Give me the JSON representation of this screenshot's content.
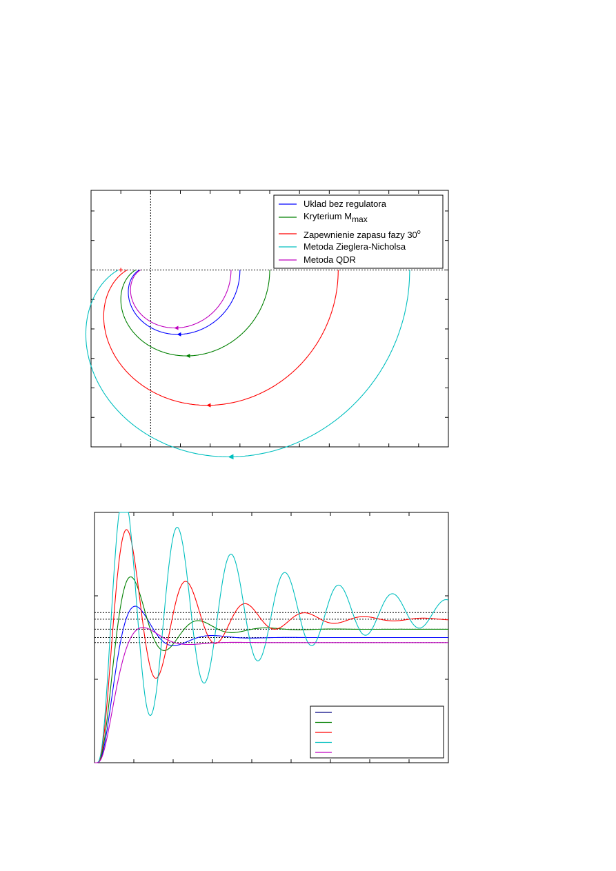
{
  "colors": {
    "blue": "#0000ff",
    "green": "#008000",
    "red": "#ff0000",
    "cyan": "#00bfbf",
    "magenta": "#bf00bf",
    "axis": "#000000"
  },
  "chart_data": [
    {
      "type": "line",
      "subtype": "nyquist",
      "title": "",
      "xlabel": "",
      "ylabel": "",
      "grid": false,
      "legend_position": "top-right",
      "critical_point": [
        -1,
        0
      ],
      "xlim": [
        -2,
        10
      ],
      "ylim": [
        -6,
        2.7
      ],
      "series": [
        {
          "name": "Uklad bez regulatora",
          "color": "#0000ff",
          "shape": {
            "gain": 3.0,
            "order": 3,
            "r0": 0.12
          }
        },
        {
          "name": "Kryterium M",
          "name_sub": "max",
          "color": "#008000",
          "shape": {
            "gain": 4.0,
            "order": 3,
            "r0": 0.12
          }
        },
        {
          "name": "Zapewnienie zapasu fazy 30",
          "name_sup": "o",
          "color": "#ff0000",
          "shape": {
            "gain": 6.3,
            "order": 3,
            "r0": 0.12
          }
        },
        {
          "name": "Metoda Zieglera-Nicholsa",
          "color": "#00bfbf",
          "shape": {
            "gain": 8.7,
            "order": 3,
            "r0": 0.12
          }
        },
        {
          "name": "Metoda QDR",
          "color": "#bf00bf",
          "shape": {
            "gain": 2.7,
            "order": 3,
            "r0": 0.12
          }
        }
      ]
    },
    {
      "type": "line",
      "subtype": "step-response",
      "title": "",
      "xlabel": "",
      "ylabel": "",
      "grid": false,
      "legend_position": "bottom-right",
      "xlim": [
        0,
        9
      ],
      "ylim": [
        0,
        1.5
      ],
      "series": [
        {
          "name": "",
          "color": "#0000ff",
          "steady": 0.75,
          "zeta": 0.4,
          "wn": 3.5
        },
        {
          "name": "",
          "color": "#008000",
          "steady": 0.8,
          "zeta": 0.28,
          "wn": 3.8
        },
        {
          "name": "",
          "color": "#ff0000",
          "steady": 0.86,
          "zeta": 0.14,
          "wn": 4.2
        },
        {
          "name": "",
          "color": "#00bfbf",
          "steady": 0.9,
          "zeta": 0.06,
          "wn": 4.6
        },
        {
          "name": "",
          "color": "#bf00bf",
          "steady": 0.72,
          "zeta": 0.55,
          "wn": 3.2
        }
      ],
      "legend_line_colors": [
        "#000080",
        "#008000",
        "#ff0000",
        "#00bfbf",
        "#bf00bf"
      ],
      "steady_state_lines": [
        0.9,
        0.86,
        0.8,
        0.75,
        0.72
      ]
    }
  ]
}
